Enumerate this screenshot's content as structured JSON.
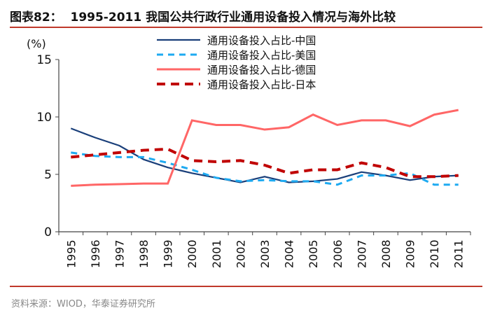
{
  "title": "图表82：  1995-2011 我国公共行政行业通用设备投入情况与海外比较",
  "source": "资料来源：WIOD，华泰证券研究所",
  "chart_data": {
    "type": "line",
    "ylabel": "(%)",
    "ylim": [
      0,
      15
    ],
    "yticks": [
      0,
      5,
      10,
      15
    ],
    "grid": false,
    "legend": "top-right",
    "categories": [
      "1995",
      "1996",
      "1997",
      "1998",
      "1999",
      "2000",
      "2001",
      "2002",
      "2003",
      "2004",
      "2005",
      "2006",
      "2007",
      "2008",
      "2009",
      "2010",
      "2011"
    ],
    "series": [
      {
        "name": "通用设备投入占比-中国",
        "color": "#1a3f7a",
        "dash": "solid",
        "values": [
          9.0,
          8.2,
          7.5,
          6.3,
          5.6,
          5.1,
          4.7,
          4.3,
          4.8,
          4.3,
          4.4,
          4.6,
          5.2,
          4.9,
          4.5,
          4.8,
          4.9
        ]
      },
      {
        "name": "通用设备投入占比-美国",
        "color": "#1eaaf1",
        "dash": "dashed",
        "values": [
          6.9,
          6.6,
          6.5,
          6.5,
          6.0,
          5.4,
          4.7,
          4.4,
          4.5,
          4.4,
          4.4,
          4.1,
          4.9,
          4.9,
          5.1,
          4.1,
          4.1
        ]
      },
      {
        "name": "通用设备投入占比-德国",
        "color": "#ff6666",
        "dash": "solid",
        "values": [
          4.0,
          4.1,
          4.15,
          4.2,
          4.2,
          9.7,
          9.3,
          9.3,
          8.9,
          9.1,
          10.2,
          9.3,
          9.7,
          9.7,
          9.2,
          10.2,
          10.6
        ]
      },
      {
        "name": "通用设备投入占比-日本",
        "color": "#c00000",
        "dash": "dashed",
        "values": [
          6.5,
          6.7,
          6.9,
          7.1,
          7.2,
          6.2,
          6.1,
          6.2,
          5.8,
          5.1,
          5.4,
          5.4,
          6.0,
          5.6,
          4.8,
          4.8,
          4.9
        ]
      }
    ]
  }
}
